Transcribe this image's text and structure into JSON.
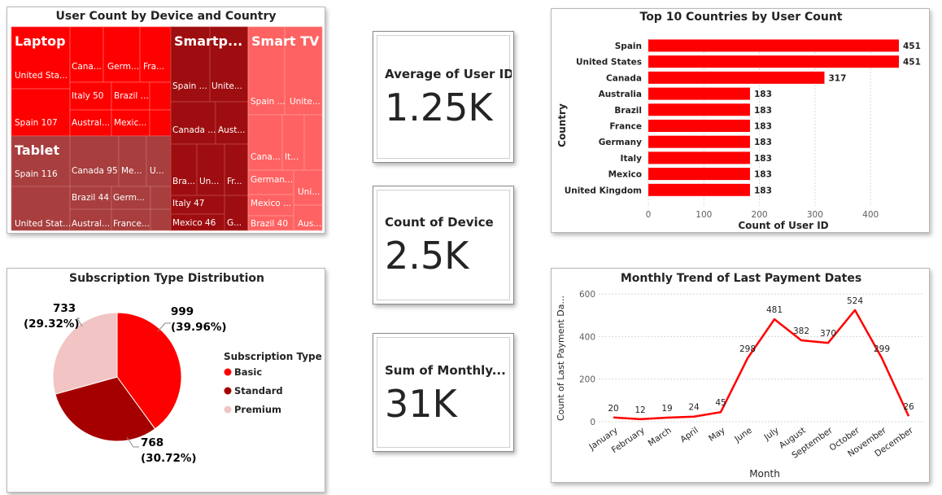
{
  "treemap": {
    "title": "User Count by Device and Country",
    "groups": [
      {
        "name": "Laptop",
        "color": "#ff0000",
        "cells": [
          "United Sta...",
          "Spain 107",
          "Cana...",
          "Germ...",
          "Fra...",
          "Italy 50",
          "Brazil ...",
          "Austral...",
          "Mexic..."
        ]
      },
      {
        "name": "Smartp...",
        "color": "#9e0e10",
        "cells": [
          "Spain ...",
          "Unite...",
          "Canada ...",
          "Aust...",
          "Bra...",
          "Un...",
          "Fr...",
          "Italy 47",
          "Mexico 46",
          "G..."
        ]
      },
      {
        "name": "Smart TV",
        "color": "#ff6262",
        "cells": [
          "Spain ...",
          "Unite...",
          "Cana...",
          "It...",
          "German...",
          "Uni...",
          "Mexico ...",
          "Brazil 40",
          "Aus..."
        ]
      },
      {
        "name": "Tablet",
        "color": "#a83e3e",
        "cells": [
          "Spain 116",
          "United Stat...",
          "Canada 95",
          "Me...",
          "U...",
          "Brazil 44",
          "Germ...",
          "Austral...",
          "France..."
        ]
      }
    ]
  },
  "cards": [
    {
      "label": "Average of User ID",
      "value": "1.25K"
    },
    {
      "label": "Count of Device",
      "value": "2.5K"
    },
    {
      "label": "Sum of Monthly...",
      "value": "31K"
    }
  ],
  "colors": {
    "accent": "#ff0000",
    "dark_red": "#a50000",
    "pink": "#f2c4c4",
    "grid": "#cccccc"
  },
  "chart_data": [
    {
      "type": "bar",
      "orientation": "horizontal",
      "title": "Top 10 Countries by User Count",
      "xlabel": "Count of User ID",
      "ylabel": "Country",
      "categories": [
        "Spain",
        "United States",
        "Canada",
        "Australia",
        "Brazil",
        "France",
        "Germany",
        "Italy",
        "Mexico",
        "United Kingdom"
      ],
      "values": [
        451,
        451,
        317,
        183,
        183,
        183,
        183,
        183,
        183,
        183
      ],
      "xlim": [
        0,
        451
      ],
      "xticks": [
        0,
        100,
        200,
        300,
        400
      ],
      "grid": true
    },
    {
      "type": "pie",
      "title": "Subscription Type Distribution",
      "legend_title": "Subscription Type",
      "legend_position": "right",
      "slices": [
        {
          "name": "Basic",
          "value": 999,
          "label": "999",
          "pct": "(39.96%)",
          "color": "#ff0000"
        },
        {
          "name": "Standard",
          "value": 768,
          "label": "768",
          "pct": "(30.72%)",
          "color": "#a50000"
        },
        {
          "name": "Premium",
          "value": 733,
          "label": "733",
          "pct": "(29.32%)",
          "color": "#f2c4c4"
        }
      ]
    },
    {
      "type": "line",
      "title": "Monthly Trend of Last Payment Dates",
      "xlabel": "Month",
      "ylabel": "Count of Last Payment Da...",
      "categories": [
        "January",
        "February",
        "March",
        "April",
        "May",
        "June",
        "July",
        "August",
        "September",
        "October",
        "November",
        "December"
      ],
      "values": [
        20,
        12,
        19,
        24,
        45,
        298,
        481,
        382,
        370,
        524,
        299,
        26
      ],
      "ylim": [
        0,
        600
      ],
      "yticks": [
        0,
        200,
        400,
        600
      ],
      "grid": true,
      "color": "#ff0000"
    }
  ]
}
